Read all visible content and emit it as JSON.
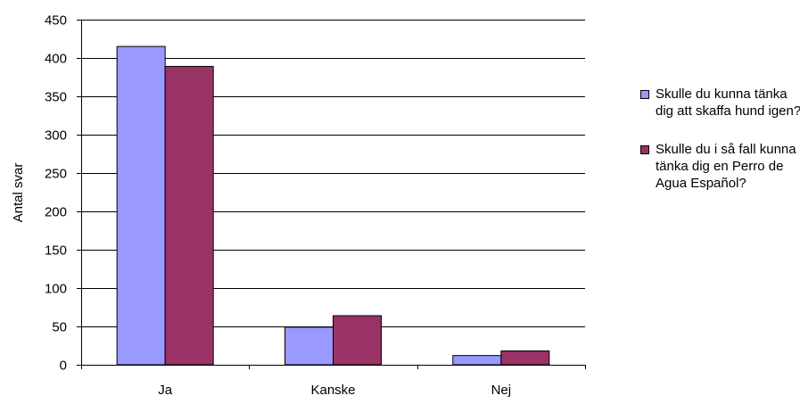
{
  "chart_data": {
    "type": "bar",
    "title": "",
    "xlabel": "",
    "ylabel": "Antal svar",
    "categories": [
      "Ja",
      "Kanske",
      "Nej"
    ],
    "ylim": [
      0,
      450
    ],
    "yticks": [
      0,
      50,
      100,
      150,
      200,
      250,
      300,
      350,
      400,
      450
    ],
    "grid": true,
    "legend_position": "right",
    "series": [
      {
        "name": "Skulle du kunna tänka dig att skaffa hund igen?",
        "values": [
          415,
          49,
          12
        ],
        "color": "#9999ff"
      },
      {
        "name": "Skulle du i så fall kunna tänka dig en Perro de Agua Español?",
        "values": [
          389,
          64,
          18
        ],
        "color": "#993366"
      }
    ]
  }
}
